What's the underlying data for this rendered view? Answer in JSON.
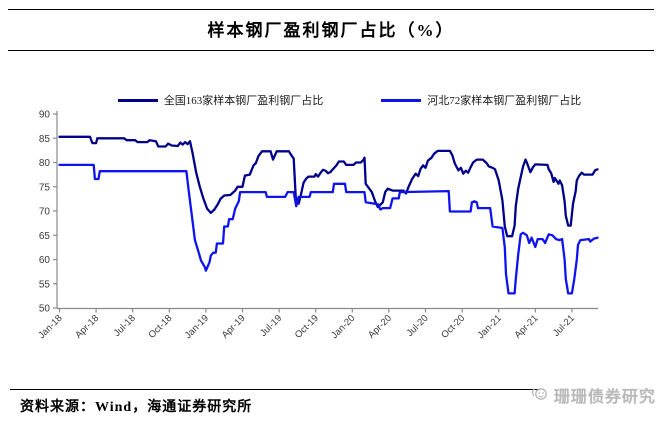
{
  "title": "样本钢厂盈利钢厂占比（%）",
  "source_note": "资料来源：Wind，海通证券研究所",
  "watermark": {
    "text": "珊珊债券研究",
    "icon": "coral-badge-icon"
  },
  "colors": {
    "axis": "#8a8a8a",
    "tick_label": "#3a3a3a",
    "national_line": "#00008B",
    "hebei_line": "#0f14ee",
    "watermark": "#b9b9b9"
  },
  "chart_data": {
    "type": "line",
    "title": "样本钢厂盈利钢厂占比（%）",
    "xlabel": "",
    "ylabel": "",
    "ylim": [
      50,
      90
    ],
    "y_tick_step": 5,
    "grid": false,
    "legend_position": "top",
    "x_unit": "months since Jan-2018, weekly data, range Jan-18 to ~Sep-21",
    "x_tick_interval_months": 3,
    "x_tick_labels": [
      "Jan-18",
      "Apr-18",
      "Jul-18",
      "Oct-18",
      "Jan-19",
      "Apr-19",
      "Jul-19",
      "Oct-19",
      "Jan-20",
      "Apr-20",
      "Jul-20",
      "Oct-20",
      "Jan-21",
      "Apr-21",
      "Jul-21"
    ],
    "series": [
      {
        "name": "全国163家样本钢厂盈利钢厂占比",
        "color": "#00008B",
        "points": [
          [
            0,
            85.3
          ],
          [
            2.5,
            85.3
          ],
          [
            2.7,
            84
          ],
          [
            3,
            84
          ],
          [
            3.1,
            85
          ],
          [
            5.3,
            85
          ],
          [
            5.5,
            84.6
          ],
          [
            6.2,
            84.6
          ],
          [
            6.4,
            84.2
          ],
          [
            7.2,
            84.2
          ],
          [
            7.4,
            84.6
          ],
          [
            7.9,
            84.4
          ],
          [
            8.1,
            83.3
          ],
          [
            8.7,
            83.3
          ],
          [
            8.9,
            83.9
          ],
          [
            9.2,
            83.5
          ],
          [
            9.7,
            83.4
          ],
          [
            9.9,
            84.1
          ],
          [
            10.1,
            83.7
          ],
          [
            10.3,
            84.2
          ],
          [
            10.5,
            83.8
          ],
          [
            10.7,
            84.4
          ],
          [
            10.9,
            82
          ],
          [
            11.2,
            78
          ],
          [
            11.5,
            75
          ],
          [
            11.8,
            72.5
          ],
          [
            12.1,
            70.5
          ],
          [
            12.4,
            69.6
          ],
          [
            12.7,
            70.3
          ],
          [
            13,
            71.5
          ],
          [
            13.2,
            72.5
          ],
          [
            13.5,
            73.2
          ],
          [
            14,
            73.3
          ],
          [
            14.4,
            74.2
          ],
          [
            14.6,
            75
          ],
          [
            15,
            75
          ],
          [
            15.2,
            77.3
          ],
          [
            15.6,
            77.5
          ],
          [
            15.9,
            79.4
          ],
          [
            16.1,
            79.9
          ],
          [
            16.3,
            81.3
          ],
          [
            16.6,
            82.3
          ],
          [
            17.3,
            82.3
          ],
          [
            17.5,
            80.6
          ],
          [
            17.8,
            82.3
          ],
          [
            18.8,
            82.3
          ],
          [
            19,
            81.5
          ],
          [
            19.2,
            80.8
          ],
          [
            19.4,
            71
          ],
          [
            19.5,
            72.5
          ],
          [
            19.6,
            71.5
          ],
          [
            19.8,
            73.5
          ],
          [
            20,
            75.8
          ],
          [
            20.2,
            76.6
          ],
          [
            20.4,
            77.1
          ],
          [
            20.9,
            77.1
          ],
          [
            21,
            77.6
          ],
          [
            21.2,
            77.1
          ],
          [
            21.4,
            77.9
          ],
          [
            21.6,
            78.5
          ],
          [
            21.8,
            78.3
          ],
          [
            22,
            77.8
          ],
          [
            22.2,
            78
          ],
          [
            22.4,
            78.6
          ],
          [
            22.7,
            79.4
          ],
          [
            22.9,
            80.2
          ],
          [
            23.3,
            80.2
          ],
          [
            23.5,
            79.5
          ],
          [
            24.1,
            79.5
          ],
          [
            24.3,
            80
          ],
          [
            24.7,
            80
          ],
          [
            24.9,
            80.5
          ],
          [
            25,
            81
          ],
          [
            25.1,
            75.6
          ],
          [
            25.3,
            74.9
          ],
          [
            25.6,
            73.9
          ],
          [
            25.9,
            71.8
          ],
          [
            26.1,
            70.8
          ],
          [
            26.5,
            71.8
          ],
          [
            26.7,
            73.9
          ],
          [
            26.9,
            74.6
          ],
          [
            27.3,
            74.2
          ],
          [
            28.2,
            74.2
          ],
          [
            28.4,
            73.6
          ],
          [
            28.6,
            74.9
          ],
          [
            28.9,
            76.6
          ],
          [
            29.2,
            77.7
          ],
          [
            29.4,
            77.2
          ],
          [
            29.6,
            78.7
          ],
          [
            29.8,
            79.4
          ],
          [
            30,
            78.9
          ],
          [
            30.2,
            80.4
          ],
          [
            30.5,
            81
          ],
          [
            30.7,
            81.8
          ],
          [
            31,
            82.4
          ],
          [
            32,
            82.4
          ],
          [
            32.2,
            81.5
          ],
          [
            32.4,
            79.8
          ],
          [
            32.7,
            78.4
          ],
          [
            32.9,
            78.9
          ],
          [
            33.1,
            77.7
          ],
          [
            33.3,
            78.3
          ],
          [
            33.5,
            77.9
          ],
          [
            33.7,
            79
          ],
          [
            33.9,
            80
          ],
          [
            34.2,
            80.6
          ],
          [
            34.7,
            80.6
          ],
          [
            35,
            79.9
          ],
          [
            35.2,
            79.2
          ],
          [
            35.5,
            78.9
          ],
          [
            35.7,
            78.6
          ],
          [
            36,
            76.3
          ],
          [
            36.3,
            72.2
          ],
          [
            36.5,
            66.8
          ],
          [
            36.7,
            64.8
          ],
          [
            37.1,
            64.8
          ],
          [
            37.3,
            67
          ],
          [
            37.4,
            71
          ],
          [
            37.6,
            74.6
          ],
          [
            37.8,
            77
          ],
          [
            38,
            79.2
          ],
          [
            38.2,
            80.6
          ],
          [
            38.3,
            80
          ],
          [
            38.6,
            78
          ],
          [
            38.8,
            79
          ],
          [
            39,
            79.6
          ],
          [
            40,
            79.5
          ],
          [
            40.1,
            78.6
          ],
          [
            40.3,
            77.8
          ],
          [
            40.5,
            76
          ],
          [
            40.6,
            76.8
          ],
          [
            40.9,
            75.6
          ],
          [
            41,
            76.3
          ],
          [
            41.2,
            75.3
          ],
          [
            41.4,
            72
          ],
          [
            41.5,
            69
          ],
          [
            41.7,
            67
          ],
          [
            41.9,
            67
          ],
          [
            42.1,
            71.6
          ],
          [
            42.3,
            74
          ],
          [
            42.4,
            76.3
          ],
          [
            42.6,
            77.3
          ],
          [
            42.8,
            77.9
          ],
          [
            43,
            77.5
          ],
          [
            43.7,
            77.5
          ],
          [
            43.9,
            78.4
          ],
          [
            44.1,
            78.6
          ]
        ]
      },
      {
        "name": "河北72家样本钢厂盈利钢厂占比",
        "color": "#0f14ee",
        "points": [
          [
            0,
            79.5
          ],
          [
            2.8,
            79.5
          ],
          [
            2.9,
            76.6
          ],
          [
            3.2,
            76.6
          ],
          [
            3.3,
            78.2
          ],
          [
            10.4,
            78.2
          ],
          [
            10.6,
            74
          ],
          [
            10.9,
            68
          ],
          [
            11.1,
            64
          ],
          [
            11.4,
            61.5
          ],
          [
            11.6,
            59.8
          ],
          [
            11.9,
            58.5
          ],
          [
            12,
            57.7
          ],
          [
            12.3,
            59.5
          ],
          [
            12.4,
            60.8
          ],
          [
            12.6,
            61.4
          ],
          [
            12.8,
            61.4
          ],
          [
            12.9,
            63.3
          ],
          [
            13.4,
            63.3
          ],
          [
            13.5,
            66.8
          ],
          [
            13.8,
            66.8
          ],
          [
            13.9,
            68.3
          ],
          [
            14.2,
            68.3
          ],
          [
            14.4,
            70.5
          ],
          [
            14.7,
            72
          ],
          [
            14.8,
            73.9
          ],
          [
            16.9,
            73.9
          ],
          [
            17,
            72.9
          ],
          [
            18.5,
            72.9
          ],
          [
            18.7,
            73.9
          ],
          [
            19.2,
            73.9
          ],
          [
            19.4,
            71
          ],
          [
            19.6,
            72.9
          ],
          [
            20.5,
            72.9
          ],
          [
            20.6,
            73.9
          ],
          [
            22.4,
            73.9
          ],
          [
            22.5,
            75.6
          ],
          [
            23.4,
            75.6
          ],
          [
            23.5,
            73.9
          ],
          [
            25,
            73.9
          ],
          [
            25.1,
            71.8
          ],
          [
            26.1,
            71.4
          ],
          [
            26.3,
            70.3
          ],
          [
            26.5,
            70.6
          ],
          [
            27.1,
            70.6
          ],
          [
            27.3,
            72.6
          ],
          [
            27.8,
            72.6
          ],
          [
            27.9,
            73.9
          ],
          [
            31.9,
            74.1
          ],
          [
            32,
            69.9
          ],
          [
            33.7,
            69.9
          ],
          [
            33.8,
            71.8
          ],
          [
            34,
            72
          ],
          [
            34.2,
            71.8
          ],
          [
            34.3,
            70.6
          ],
          [
            35.3,
            70.6
          ],
          [
            35.5,
            66.8
          ],
          [
            36.3,
            66.5
          ],
          [
            36.5,
            62.5
          ],
          [
            36.6,
            57
          ],
          [
            36.8,
            53
          ],
          [
            37.3,
            53
          ],
          [
            37.4,
            56
          ],
          [
            37.6,
            61
          ],
          [
            37.8,
            65.2
          ],
          [
            38,
            65.5
          ],
          [
            38.3,
            65
          ],
          [
            38.5,
            63.4
          ],
          [
            38.7,
            64.5
          ],
          [
            39,
            62.6
          ],
          [
            39.2,
            64.2
          ],
          [
            39.6,
            64.2
          ],
          [
            39.8,
            63.4
          ],
          [
            40.1,
            65.2
          ],
          [
            40.4,
            65
          ],
          [
            40.7,
            64.2
          ],
          [
            41,
            64
          ],
          [
            41.2,
            64.2
          ],
          [
            41.4,
            60
          ],
          [
            41.5,
            56
          ],
          [
            41.7,
            53
          ],
          [
            42,
            53
          ],
          [
            42.2,
            56
          ],
          [
            42.4,
            60
          ],
          [
            42.5,
            63
          ],
          [
            42.7,
            64
          ],
          [
            43.4,
            64.2
          ],
          [
            43.5,
            63.7
          ],
          [
            43.8,
            64.3
          ],
          [
            44.1,
            64.5
          ]
        ]
      }
    ]
  }
}
